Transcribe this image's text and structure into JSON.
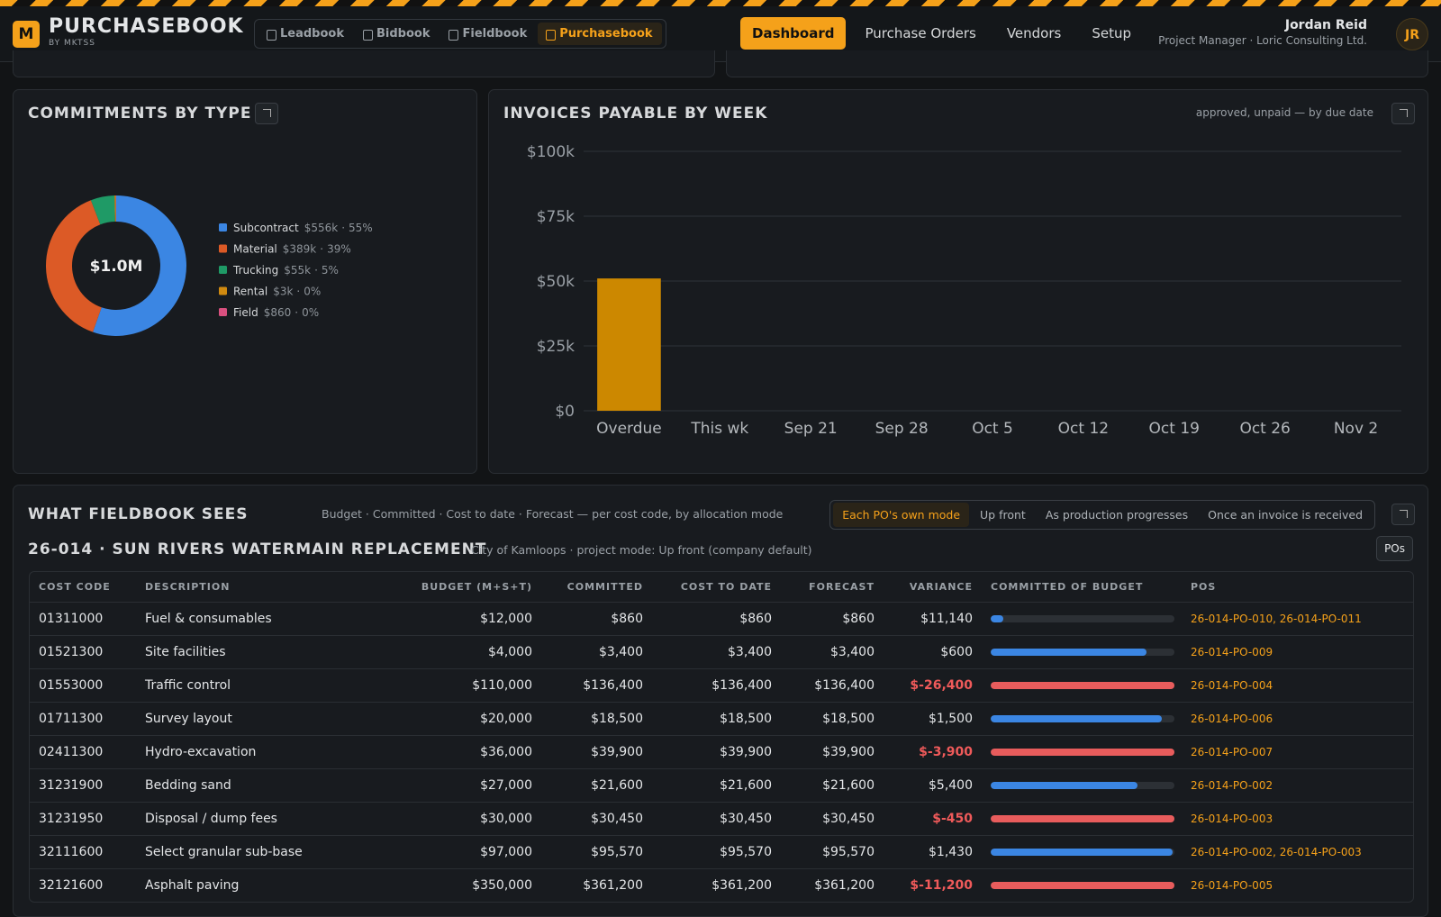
{
  "header": {
    "logo": "M",
    "app_name": "PURCHASEBOOK",
    "by": "BY MKTSS",
    "products": [
      "Leadbook",
      "Bidbook",
      "Fieldbook",
      "Purchasebook"
    ],
    "active_product": 3,
    "nav": [
      "Dashboard",
      "Purchase Orders",
      "Vendors",
      "Setup"
    ],
    "active_nav": 0,
    "user": {
      "name": "Jordan Reid",
      "role": "Project Manager · Loric Consulting Ltd.",
      "initials": "JR"
    }
  },
  "chart_data": [
    {
      "type": "pie",
      "title": "COMMITMENTS BY TYPE",
      "center_label": "$1.0M",
      "categories": [
        "Subcontract",
        "Material",
        "Trucking",
        "Rental",
        "Field"
      ],
      "values": [
        556000,
        389000,
        55000,
        3000,
        860
      ],
      "value_labels": [
        "$556k",
        "$389k",
        "$55k",
        "$3k",
        "$860"
      ],
      "share_labels": [
        "55%",
        "39%",
        "5%",
        "0%",
        "0%"
      ],
      "colors": [
        "#3b86e3",
        "#dc5a26",
        "#1f9a66",
        "#d08a10",
        "#d9507f"
      ]
    },
    {
      "type": "bar",
      "title": "INVOICES PAYABLE BY WEEK",
      "subtitle": "approved, unpaid — by due date",
      "categories": [
        "Overdue",
        "This wk",
        "Sep 21",
        "Sep 28",
        "Oct 5",
        "Oct 12",
        "Oct 19",
        "Oct 26",
        "Nov 2"
      ],
      "values": [
        51000,
        0,
        0,
        0,
        0,
        0,
        0,
        0,
        0
      ],
      "color": "#cc8800",
      "ylim": [
        0,
        100000
      ],
      "yticks": [
        {
          "value": 0,
          "label": "$0"
        },
        {
          "value": 25000,
          "label": "$25k"
        },
        {
          "value": 50000,
          "label": "$50k"
        },
        {
          "value": 75000,
          "label": "$75k"
        },
        {
          "value": 100000,
          "label": "$100k"
        }
      ],
      "grid": true
    }
  ],
  "fieldbook": {
    "title": "WHAT FIELDBOOK SEES",
    "subtitle": "Budget · Committed · Cost to date · Forecast — per cost code, by allocation mode",
    "modes": [
      "Each PO's own mode",
      "Up front",
      "As production progresses",
      "Once an invoice is received"
    ],
    "active_mode": 0,
    "project_title": "26-014 · SUN RIVERS WATERMAIN REPLACEMENT",
    "project_note": "City of Kamloops · project mode: Up front (company default)",
    "pos_button": "POs",
    "columns": [
      "COST CODE",
      "DESCRIPTION",
      "BUDGET (M+S+T)",
      "COMMITTED",
      "COST TO DATE",
      "FORECAST",
      "VARIANCE",
      "COMMITTED OF BUDGET",
      "POS"
    ],
    "rows": [
      {
        "cost_code": "01311000",
        "description": "Fuel & consumables",
        "budget": "$12,000",
        "committed": "$860",
        "cost_to_date": "$860",
        "forecast": "$860",
        "variance": "$11,140",
        "committed_pct": 7,
        "pos": "26-014-PO-010, 26-014-PO-011"
      },
      {
        "cost_code": "01521300",
        "description": "Site facilities",
        "budget": "$4,000",
        "committed": "$3,400",
        "cost_to_date": "$3,400",
        "forecast": "$3,400",
        "variance": "$600",
        "committed_pct": 85,
        "pos": "26-014-PO-009"
      },
      {
        "cost_code": "01553000",
        "description": "Traffic control",
        "budget": "$110,000",
        "committed": "$136,400",
        "cost_to_date": "$136,400",
        "forecast": "$136,400",
        "variance": "$-26,400",
        "committed_pct": 124,
        "pos": "26-014-PO-004"
      },
      {
        "cost_code": "01711300",
        "description": "Survey layout",
        "budget": "$20,000",
        "committed": "$18,500",
        "cost_to_date": "$18,500",
        "forecast": "$18,500",
        "variance": "$1,500",
        "committed_pct": 93,
        "pos": "26-014-PO-006"
      },
      {
        "cost_code": "02411300",
        "description": "Hydro-excavation",
        "budget": "$36,000",
        "committed": "$39,900",
        "cost_to_date": "$39,900",
        "forecast": "$39,900",
        "variance": "$-3,900",
        "committed_pct": 111,
        "pos": "26-014-PO-007"
      },
      {
        "cost_code": "31231900",
        "description": "Bedding sand",
        "budget": "$27,000",
        "committed": "$21,600",
        "cost_to_date": "$21,600",
        "forecast": "$21,600",
        "variance": "$5,400",
        "committed_pct": 80,
        "pos": "26-014-PO-002"
      },
      {
        "cost_code": "31231950",
        "description": "Disposal / dump fees",
        "budget": "$30,000",
        "committed": "$30,450",
        "cost_to_date": "$30,450",
        "forecast": "$30,450",
        "variance": "$-450",
        "committed_pct": 102,
        "pos": "26-014-PO-003"
      },
      {
        "cost_code": "32111600",
        "description": "Select granular sub-base",
        "budget": "$97,000",
        "committed": "$95,570",
        "cost_to_date": "$95,570",
        "forecast": "$95,570",
        "variance": "$1,430",
        "committed_pct": 99,
        "pos": "26-014-PO-002, 26-014-PO-003"
      },
      {
        "cost_code": "32121600",
        "description": "Asphalt paving",
        "budget": "$350,000",
        "committed": "$361,200",
        "cost_to_date": "$361,200",
        "forecast": "$361,200",
        "variance": "$-11,200",
        "committed_pct": 103,
        "pos": "26-014-PO-005"
      }
    ]
  }
}
